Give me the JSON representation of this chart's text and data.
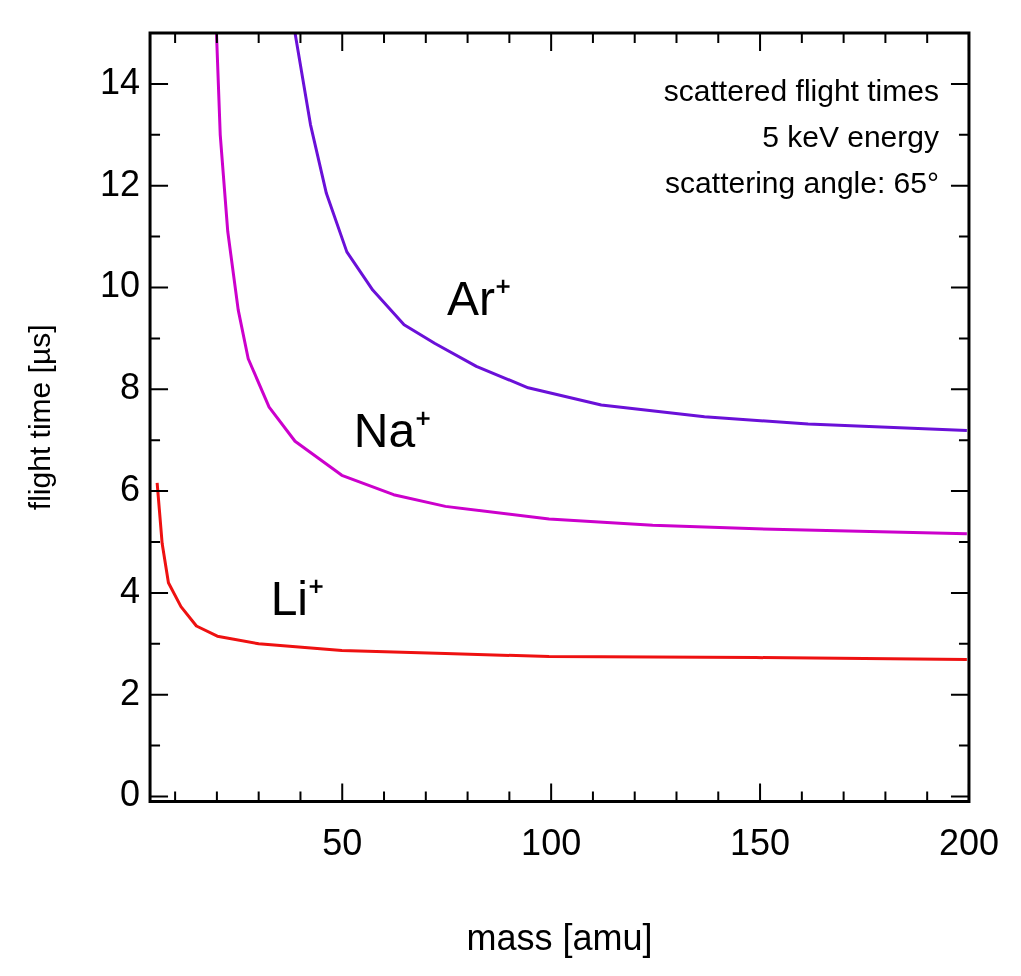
{
  "chart_data": {
    "type": "line",
    "xlabel": "mass [amu]",
    "ylabel": "flight time [µs]",
    "xlim": [
      4,
      200
    ],
    "ylim": [
      -0.1,
      15
    ],
    "xticks": [
      {
        "value": 10,
        "label": null
      },
      {
        "value": 20,
        "label": null
      },
      {
        "value": 30,
        "label": null
      },
      {
        "value": 40,
        "label": null
      },
      50,
      {
        "value": 60,
        "label": null
      },
      {
        "value": 70,
        "label": null
      },
      {
        "value": 80,
        "label": null
      },
      {
        "value": 90,
        "label": null
      },
      100,
      {
        "value": 110,
        "label": null
      },
      {
        "value": 120,
        "label": null
      },
      {
        "value": 130,
        "label": null
      },
      {
        "value": 140,
        "label": null
      },
      150,
      {
        "value": 160,
        "label": null
      },
      {
        "value": 170,
        "label": null
      },
      {
        "value": 180,
        "label": null
      },
      {
        "value": 190,
        "label": null
      },
      200
    ],
    "yticks": [
      0,
      {
        "value": 1,
        "label": null
      },
      2,
      {
        "value": 3,
        "label": null
      },
      4,
      {
        "value": 5,
        "label": null
      },
      6,
      {
        "value": 7,
        "label": null
      },
      8,
      {
        "value": 9,
        "label": null
      },
      10,
      {
        "value": 11,
        "label": null
      },
      12,
      {
        "value": 13,
        "label": null
      },
      14
    ],
    "grid": false,
    "legend": false,
    "marker": "none",
    "line_style": "solid",
    "series": [
      {
        "name": "Ar⁺",
        "color": "#6a10d8",
        "x": [
          38.7,
          42.4,
          46.2,
          51.1,
          57.3,
          64.8,
          72.2,
          82.1,
          94.5,
          112,
          136.7,
          161.5,
          199.5
        ],
        "values": [
          15,
          13.2,
          11.85,
          10.7,
          9.95,
          9.27,
          8.9,
          8.45,
          8.03,
          7.69,
          7.46,
          7.32,
          7.19
        ]
      },
      {
        "name": "Na⁺",
        "color": "#cc00cc",
        "x": [
          19.9,
          20.8,
          22.6,
          25.1,
          27.5,
          32.5,
          38.7,
          49.9,
          62.3,
          74.7,
          99.5,
          124.3,
          149.1,
          199.5
        ],
        "values": [
          15,
          13,
          11.1,
          9.56,
          8.6,
          7.65,
          6.98,
          6.31,
          5.93,
          5.7,
          5.45,
          5.33,
          5.26,
          5.16
        ]
      },
      {
        "name": "Li⁺",
        "color": "#ee1111",
        "x": [
          5.7,
          6.9,
          8.4,
          11.4,
          15.1,
          20.1,
          30,
          49.9,
          74.7,
          99.5,
          149,
          199.5
        ],
        "values": [
          6.16,
          4.97,
          4.2,
          3.73,
          3.35,
          3.15,
          3.0,
          2.87,
          2.81,
          2.75,
          2.73,
          2.69
        ]
      }
    ],
    "annotations": [
      "scattered flight times\n5 keV energy\nscattering angle: 65°"
    ]
  }
}
